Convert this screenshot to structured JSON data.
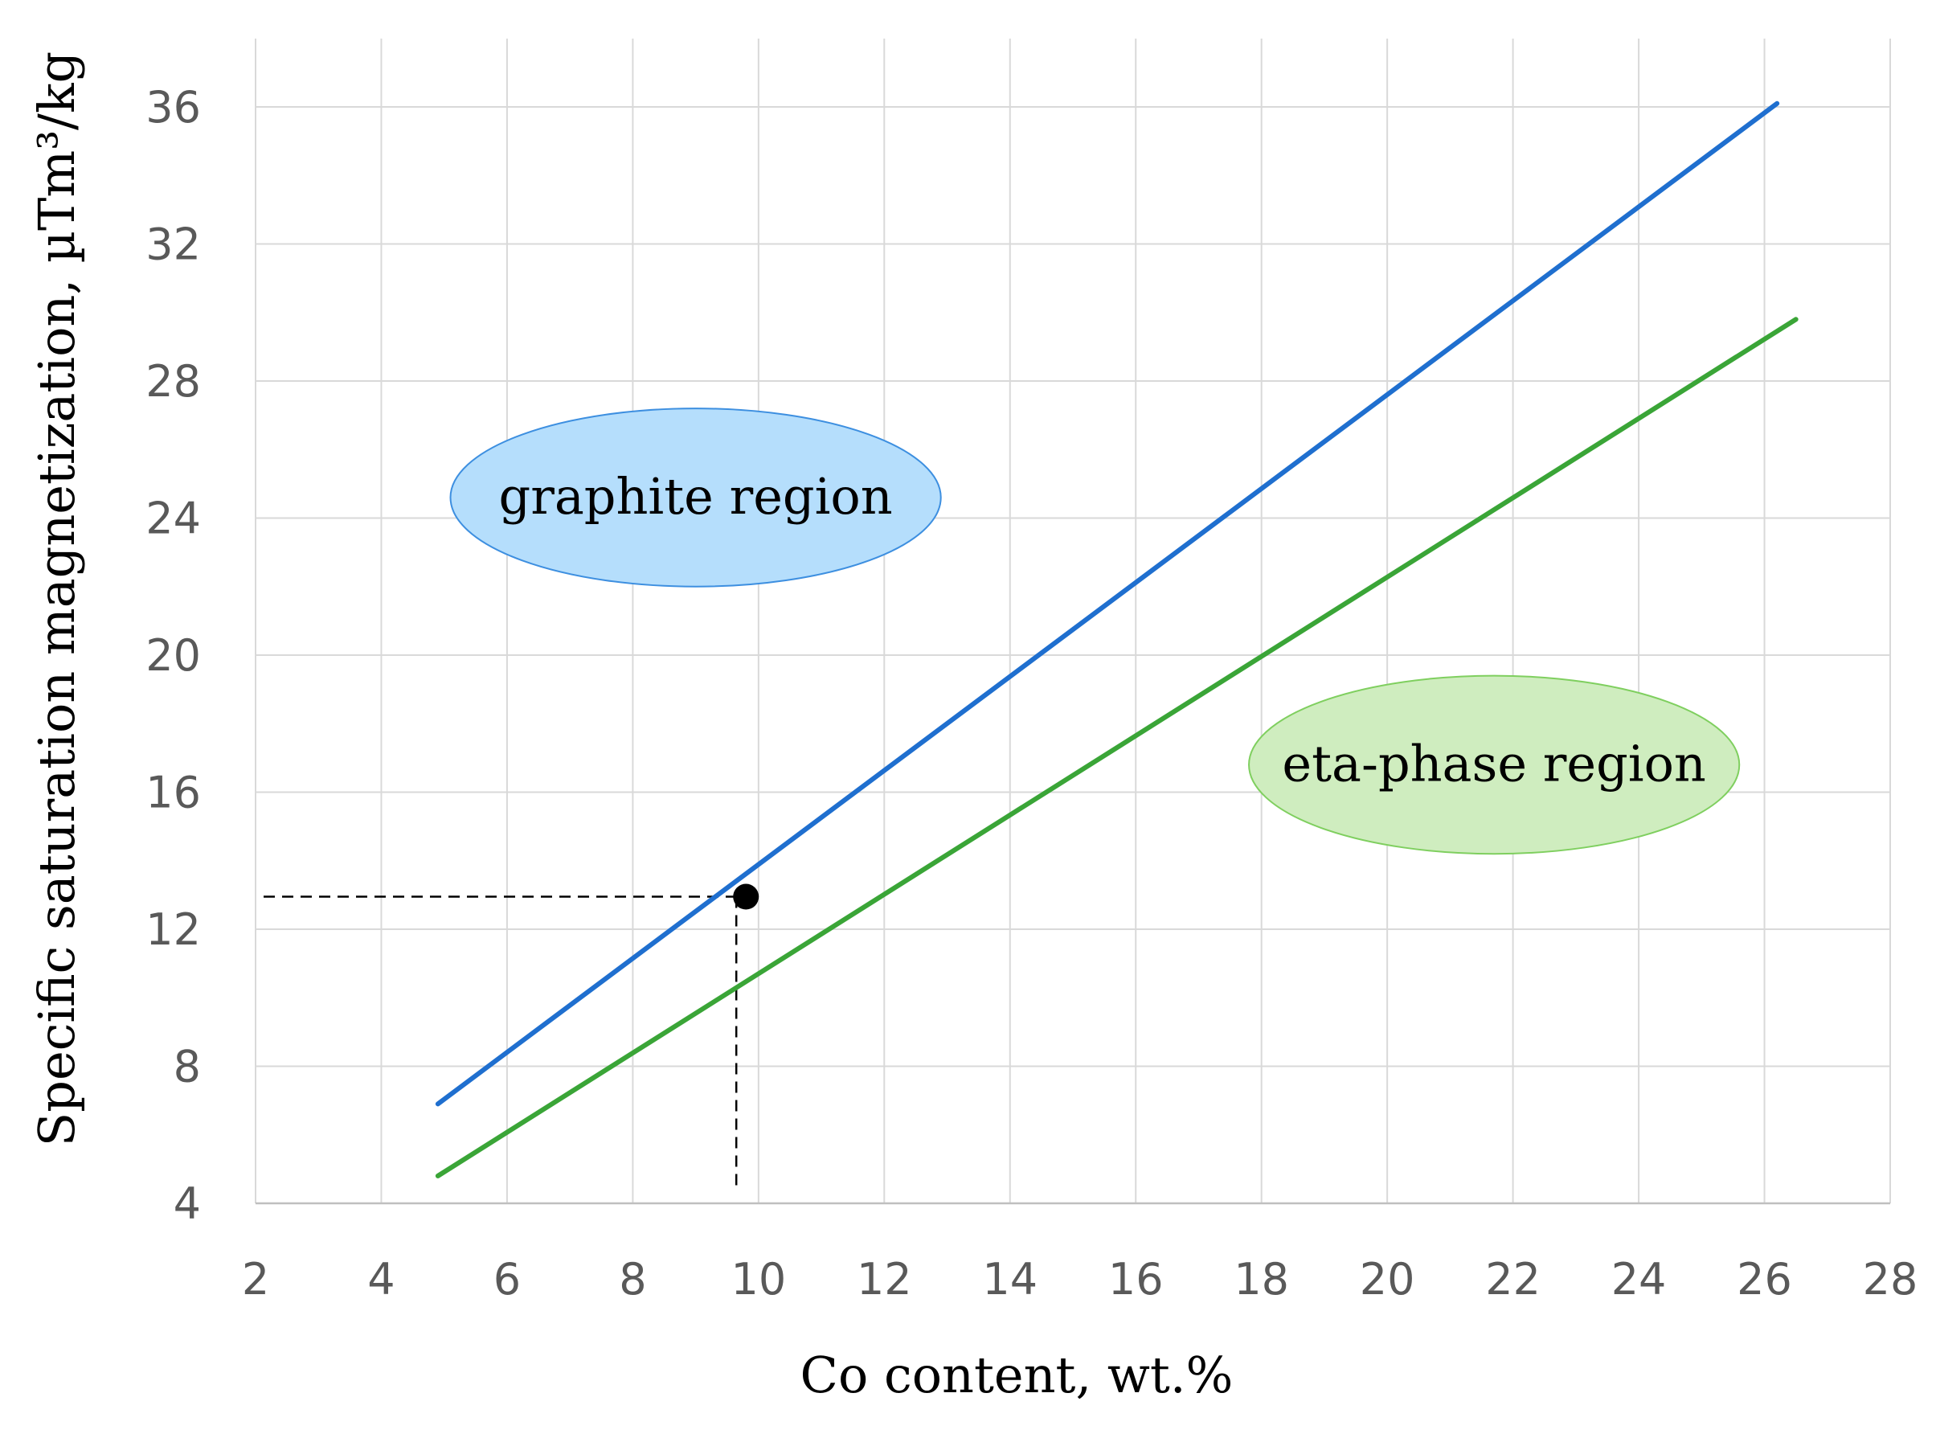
{
  "chart_data": {
    "type": "line",
    "title": "",
    "xlabel": "Co content, wt.%",
    "ylabel": "Specific saturation magnetization,  µTm³/kg",
    "xlim": [
      2,
      28
    ],
    "ylim": [
      4,
      36
    ],
    "xticks": [
      2,
      4,
      6,
      8,
      10,
      12,
      14,
      16,
      18,
      20,
      22,
      24,
      26,
      28
    ],
    "yticks": [
      4,
      8,
      12,
      16,
      20,
      24,
      28,
      32,
      36
    ],
    "grid": true,
    "legend": "none",
    "series": [
      {
        "color": "#1f6fcf",
        "x": [
          4.9,
          26.2
        ],
        "y": [
          6.9,
          36.1
        ]
      },
      {
        "color": "#3aa537",
        "x": [
          4.9,
          26.5
        ],
        "y": [
          4.8,
          29.8
        ]
      }
    ],
    "point": {
      "x": 9.8,
      "y": 12.95,
      "color": "#000000"
    },
    "regions": [
      {
        "label": "graphite  region",
        "cx": 9.0,
        "cy": 24.6,
        "rx": 3.9,
        "ry": 2.6,
        "fill": "#b5defc",
        "stroke": "#3d8fe0"
      },
      {
        "label": "eta-phase region",
        "cx": 21.7,
        "cy": 16.8,
        "rx": 3.9,
        "ry": 2.6,
        "fill": "#cfedbf",
        "stroke": "#7fcf5f"
      }
    ]
  }
}
